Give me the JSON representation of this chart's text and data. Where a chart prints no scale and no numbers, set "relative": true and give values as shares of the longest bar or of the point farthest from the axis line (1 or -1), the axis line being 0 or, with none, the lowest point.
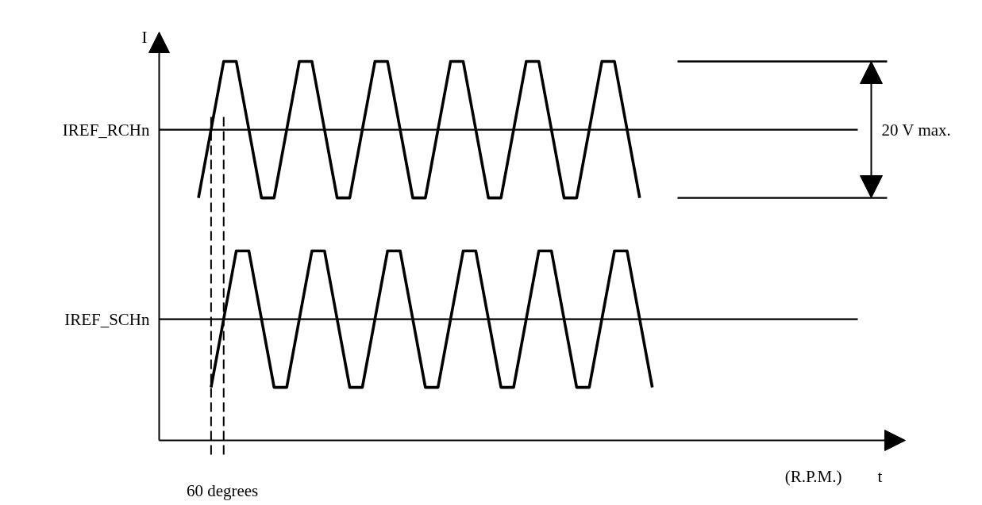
{
  "chart_data": {
    "type": "line",
    "relative": true,
    "ylabel": "I",
    "categories": [
      null,
      null,
      null,
      null,
      null,
      null,
      null,
      null,
      null,
      null,
      null,
      null,
      null,
      null,
      null,
      null,
      null,
      null,
      null,
      null,
      null,
      null,
      null,
      null,
      null,
      null,
      null,
      null,
      null,
      null,
      null,
      null,
      null,
      null,
      null,
      null,
      null,
      null,
      null,
      null,
      null,
      null,
      null,
      null,
      null,
      null,
      null,
      null,
      null,
      null,
      null,
      null,
      null,
      null,
      null,
      null,
      null,
      null,
      null,
      null,
      null,
      null,
      null,
      null,
      null,
      null,
      null,
      null,
      null,
      null,
      null,
      null,
      null
    ],
    "series": [
      {
        "color": "#000000",
        "values": [
          0.64,
          0.73,
          0.82,
          0.91,
          1.0,
          1.0,
          1.0,
          0.91,
          0.82,
          0.73,
          0.64,
          0.64,
          0.64,
          0.73,
          0.82,
          0.91,
          1.0,
          1.0,
          1.0,
          0.91,
          0.82,
          0.73,
          0.64,
          0.64,
          0.64,
          0.73,
          0.82,
          0.91,
          1.0,
          1.0,
          1.0,
          0.91,
          0.82,
          0.73,
          0.64,
          0.64,
          0.64,
          0.73,
          0.82,
          0.91,
          1.0,
          1.0,
          1.0,
          0.91,
          0.82,
          0.73,
          0.64,
          0.64,
          0.64,
          0.73,
          0.82,
          0.91,
          1.0,
          1.0,
          1.0,
          0.91,
          0.82,
          0.73,
          0.64,
          0.64,
          0.64,
          0.73,
          0.82,
          0.91,
          1.0,
          1.0,
          1.0,
          0.91,
          0.82,
          0.73,
          0.64,
          null,
          null
        ]
      },
      {
        "color": "#000000",
        "values": [
          null,
          null,
          0.14,
          0.23,
          0.32,
          0.41,
          0.5,
          0.5,
          0.5,
          0.41,
          0.32,
          0.23,
          0.14,
          0.14,
          0.14,
          0.23,
          0.32,
          0.41,
          0.5,
          0.5,
          0.5,
          0.41,
          0.32,
          0.23,
          0.14,
          0.14,
          0.14,
          0.23,
          0.32,
          0.41,
          0.5,
          0.5,
          0.5,
          0.41,
          0.32,
          0.23,
          0.14,
          0.14,
          0.14,
          0.23,
          0.32,
          0.41,
          0.5,
          0.5,
          0.5,
          0.41,
          0.32,
          0.23,
          0.14,
          0.14,
          0.14,
          0.23,
          0.32,
          0.41,
          0.5,
          0.5,
          0.5,
          0.41,
          0.32,
          0.23,
          0.14,
          0.14,
          0.14,
          0.23,
          0.32,
          0.41,
          0.5,
          0.5,
          0.5,
          0.41,
          0.32,
          0.23,
          0.14
        ]
      }
    ],
    "ref_lines": [
      {
        "axis": "y",
        "value": 0.82,
        "label": "IREF_RCHn"
      },
      {
        "axis": "y",
        "value": 0.32,
        "label": "IREF_SCHn"
      }
    ],
    "annotations": [
      "20 V max.",
      "(R.P.M.)",
      "t",
      "60 degrees"
    ]
  }
}
